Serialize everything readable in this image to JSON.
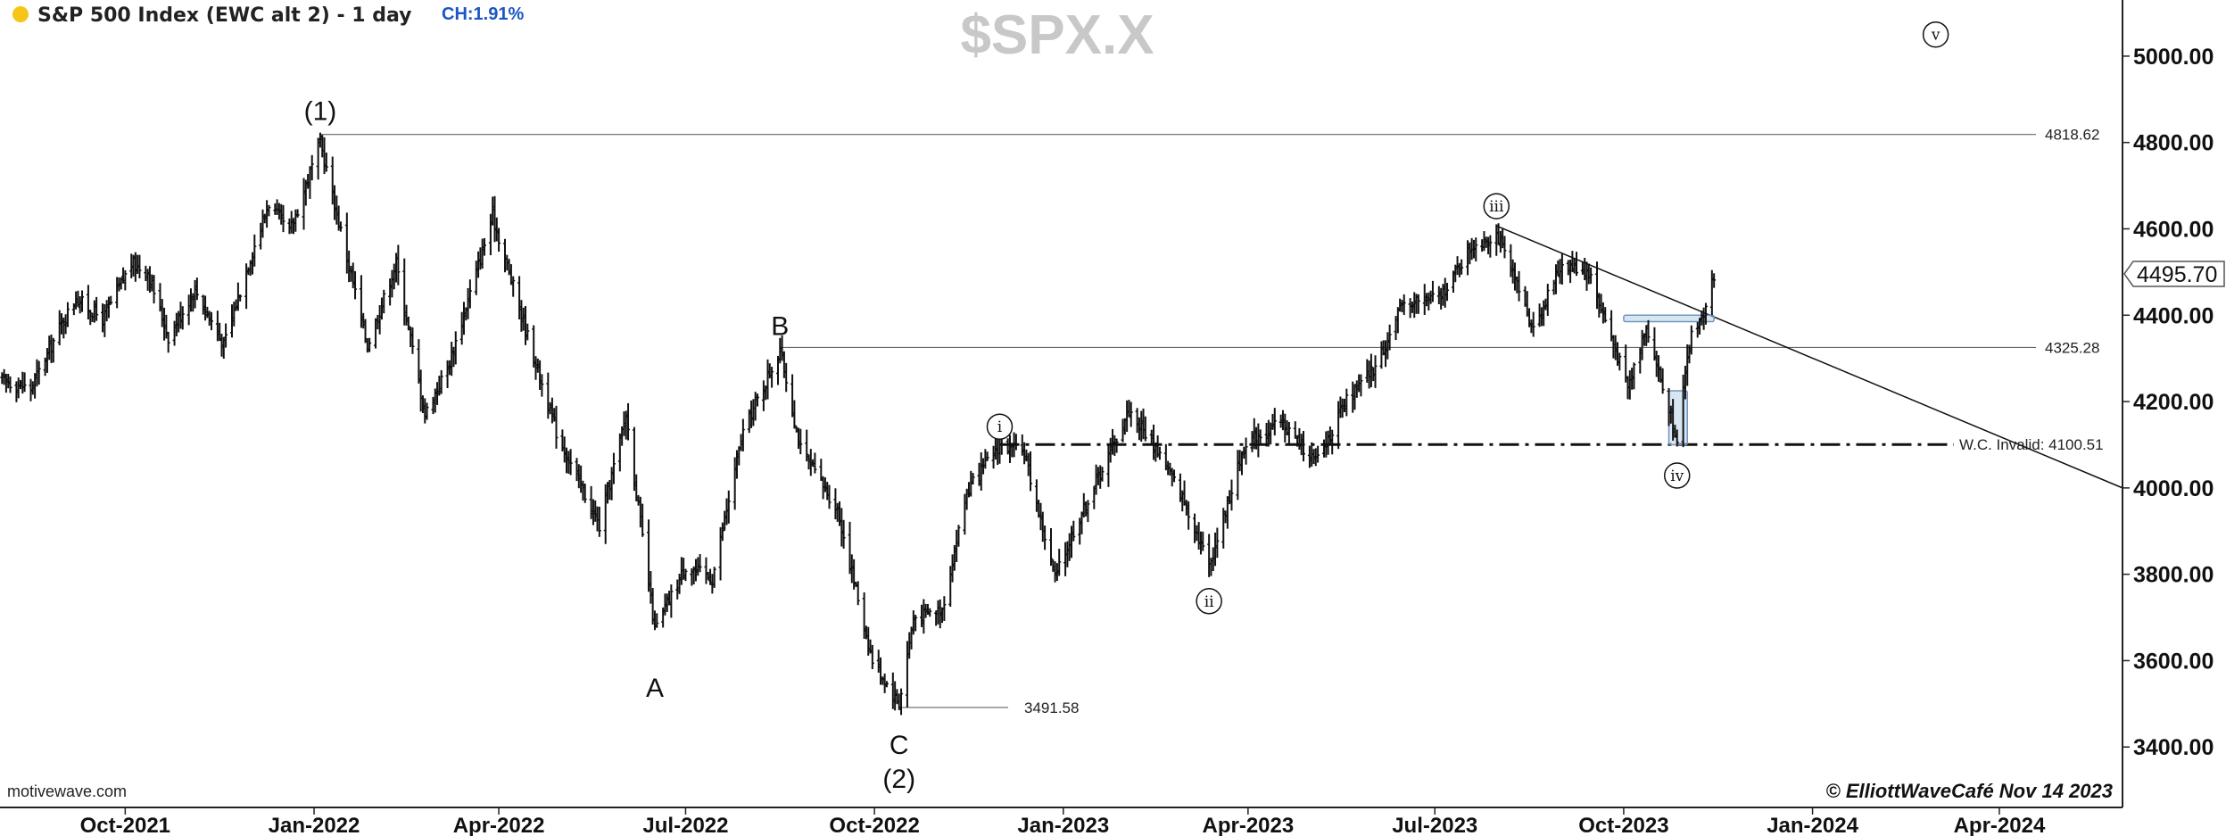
{
  "header": {
    "title": "S&P 500 Index (EWC alt 2) - 1 day",
    "change": "CH:1.91%",
    "status_dot_color": "#f5c518"
  },
  "watermark": "$SPX.X",
  "source_label": "motivewave.com",
  "copyright": "© ElliottWaveCafé Nov 14 2023",
  "chart_data": {
    "type": "ohlc",
    "title": "S&P 500 Index (EWC alt 2) - 1 day",
    "symbol": "$SPX.X",
    "interval": "1 day",
    "x_range": [
      "2021-08-01",
      "2024-05-31"
    ],
    "y_range": [
      3260,
      5130
    ],
    "y_ticks": [
      {
        "value": 3400,
        "label": "3400.00"
      },
      {
        "value": 3600,
        "label": "3600.00"
      },
      {
        "value": 3800,
        "label": "3800.00"
      },
      {
        "value": 4000,
        "label": "4000.00"
      },
      {
        "value": 4200,
        "label": "4200.00"
      },
      {
        "value": 4400,
        "label": "4400.00"
      },
      {
        "value": 4600,
        "label": "4600.00"
      },
      {
        "value": 4800,
        "label": "4800.00"
      },
      {
        "value": 5000,
        "label": "5000.00"
      }
    ],
    "x_ticks": [
      {
        "date": "2021-10-01",
        "label": "Oct-2021"
      },
      {
        "date": "2022-01-01",
        "label": "Jan-2022"
      },
      {
        "date": "2022-04-01",
        "label": "Apr-2022"
      },
      {
        "date": "2022-07-01",
        "label": "Jul-2022"
      },
      {
        "date": "2022-10-01",
        "label": "Oct-2022"
      },
      {
        "date": "2023-01-01",
        "label": "Jan-2023"
      },
      {
        "date": "2023-04-01",
        "label": "Apr-2023"
      },
      {
        "date": "2023-07-01",
        "label": "Jul-2023"
      },
      {
        "date": "2023-10-01",
        "label": "Oct-2023"
      },
      {
        "date": "2024-01-01",
        "label": "Jan-2024"
      },
      {
        "date": "2024-04-01",
        "label": "Apr-2024"
      }
    ],
    "last_price": {
      "value": 4495.7,
      "label": "4495.70"
    },
    "price_path": [
      {
        "date": "2021-08-02",
        "close": 4250
      },
      {
        "date": "2021-08-16",
        "close": 4230
      },
      {
        "date": "2021-08-30",
        "close": 4370
      },
      {
        "date": "2021-09-07",
        "close": 4440
      },
      {
        "date": "2021-09-20",
        "close": 4390
      },
      {
        "date": "2021-10-04",
        "close": 4520
      },
      {
        "date": "2021-10-12",
        "close": 4500
      },
      {
        "date": "2021-10-22",
        "close": 4350
      },
      {
        "date": "2021-11-04",
        "close": 4460
      },
      {
        "date": "2021-11-18",
        "close": 4330
      },
      {
        "date": "2021-11-30",
        "close": 4520
      },
      {
        "date": "2021-12-10",
        "close": 4660
      },
      {
        "date": "2021-12-20",
        "close": 4590
      },
      {
        "date": "2022-01-04",
        "close": 4800
      },
      {
        "date": "2022-01-27",
        "close": 4330
      },
      {
        "date": "2022-02-10",
        "close": 4520
      },
      {
        "date": "2022-02-24",
        "close": 4170
      },
      {
        "date": "2022-03-08",
        "close": 4290
      },
      {
        "date": "2022-03-29",
        "close": 4630
      },
      {
        "date": "2022-04-12",
        "close": 4400
      },
      {
        "date": "2022-04-29",
        "close": 4130
      },
      {
        "date": "2022-05-20",
        "close": 3910
      },
      {
        "date": "2022-06-02",
        "close": 4170
      },
      {
        "date": "2022-06-16",
        "close": 3670
      },
      {
        "date": "2022-07-01",
        "close": 3820
      },
      {
        "date": "2022-07-14",
        "close": 3790
      },
      {
        "date": "2022-07-29",
        "close": 4130
      },
      {
        "date": "2022-08-16",
        "close": 4320
      },
      {
        "date": "2022-08-26",
        "close": 4090
      },
      {
        "date": "2022-09-13",
        "close": 3950
      },
      {
        "date": "2022-09-30",
        "close": 3600
      },
      {
        "date": "2022-10-13",
        "close": 3500
      },
      {
        "date": "2022-10-20",
        "close": 3700
      },
      {
        "date": "2022-11-03",
        "close": 3720
      },
      {
        "date": "2022-11-15",
        "close": 3990
      },
      {
        "date": "2022-12-01",
        "close": 4100
      },
      {
        "date": "2022-12-13",
        "close": 4080
      },
      {
        "date": "2022-12-28",
        "close": 3790
      },
      {
        "date": "2023-01-06",
        "close": 3900
      },
      {
        "date": "2023-02-02",
        "close": 4180
      },
      {
        "date": "2023-02-17",
        "close": 4080
      },
      {
        "date": "2023-03-02",
        "close": 3960
      },
      {
        "date": "2023-03-13",
        "close": 3820
      },
      {
        "date": "2023-03-31",
        "close": 4110
      },
      {
        "date": "2023-04-18",
        "close": 4150
      },
      {
        "date": "2023-05-04",
        "close": 4060
      },
      {
        "date": "2023-05-19",
        "close": 4200
      },
      {
        "date": "2023-06-02",
        "close": 4280
      },
      {
        "date": "2023-06-16",
        "close": 4430
      },
      {
        "date": "2023-07-03",
        "close": 4440
      },
      {
        "date": "2023-07-19",
        "close": 4560
      },
      {
        "date": "2023-07-31",
        "close": 4590
      },
      {
        "date": "2023-08-18",
        "close": 4370
      },
      {
        "date": "2023-09-01",
        "close": 4520
      },
      {
        "date": "2023-09-14",
        "close": 4500
      },
      {
        "date": "2023-09-29",
        "close": 4290
      },
      {
        "date": "2023-10-03",
        "close": 4230
      },
      {
        "date": "2023-10-12",
        "close": 4380
      },
      {
        "date": "2023-10-20",
        "close": 4230
      },
      {
        "date": "2023-10-27",
        "close": 4120
      },
      {
        "date": "2023-11-03",
        "close": 4360
      },
      {
        "date": "2023-11-10",
        "close": 4410
      },
      {
        "date": "2023-11-14",
        "close": 4495.7
      }
    ],
    "wave_labels": [
      {
        "label": "(1)",
        "date": "2022-01-04",
        "price": 4818.62,
        "style": "plain"
      },
      {
        "label": "A",
        "date": "2022-06-16",
        "price": 3636,
        "style": "plain"
      },
      {
        "label": "B",
        "date": "2022-08-16",
        "price": 4325.28,
        "style": "plain"
      },
      {
        "label": "C",
        "date": "2022-10-13",
        "price": 3491.58,
        "style": "plain"
      },
      {
        "label": "(2)",
        "date": "2022-10-13",
        "price": 3491.58,
        "style": "plain"
      },
      {
        "label": "i",
        "date": "2022-12-01",
        "price": 4100.51,
        "style": "circled"
      },
      {
        "label": "ii",
        "date": "2023-03-13",
        "price": 3808,
        "style": "circled"
      },
      {
        "label": "iii",
        "date": "2023-07-31",
        "price": 4607,
        "style": "circled"
      },
      {
        "label": "iv",
        "date": "2023-10-27",
        "price": 4103,
        "style": "circled"
      },
      {
        "label": "v",
        "date": "2024-03-01",
        "price": 5050,
        "style": "circled"
      }
    ],
    "levels": [
      {
        "label": "4818.62",
        "value": 4818.62,
        "style": "solid"
      },
      {
        "label": "4325.28",
        "value": 4325.28,
        "style": "solid"
      },
      {
        "label": "3491.58",
        "value": 3491.58,
        "style": "solid-short"
      },
      {
        "label": "W.C. Invalid: 4100.51",
        "value": 4100.51,
        "style": "dash-dot"
      }
    ],
    "trendline": {
      "from": {
        "date": "2023-07-31",
        "price": 4607
      },
      "to": {
        "date": "2024-05-31",
        "price": 4000
      }
    },
    "highlight_zones": [
      {
        "from": "2023-10-01",
        "to": "2023-11-14",
        "low": 4385,
        "high": 4400
      },
      {
        "from": "2023-10-23",
        "to": "2023-11-01",
        "low": 4100,
        "high": 4225
      }
    ]
  }
}
